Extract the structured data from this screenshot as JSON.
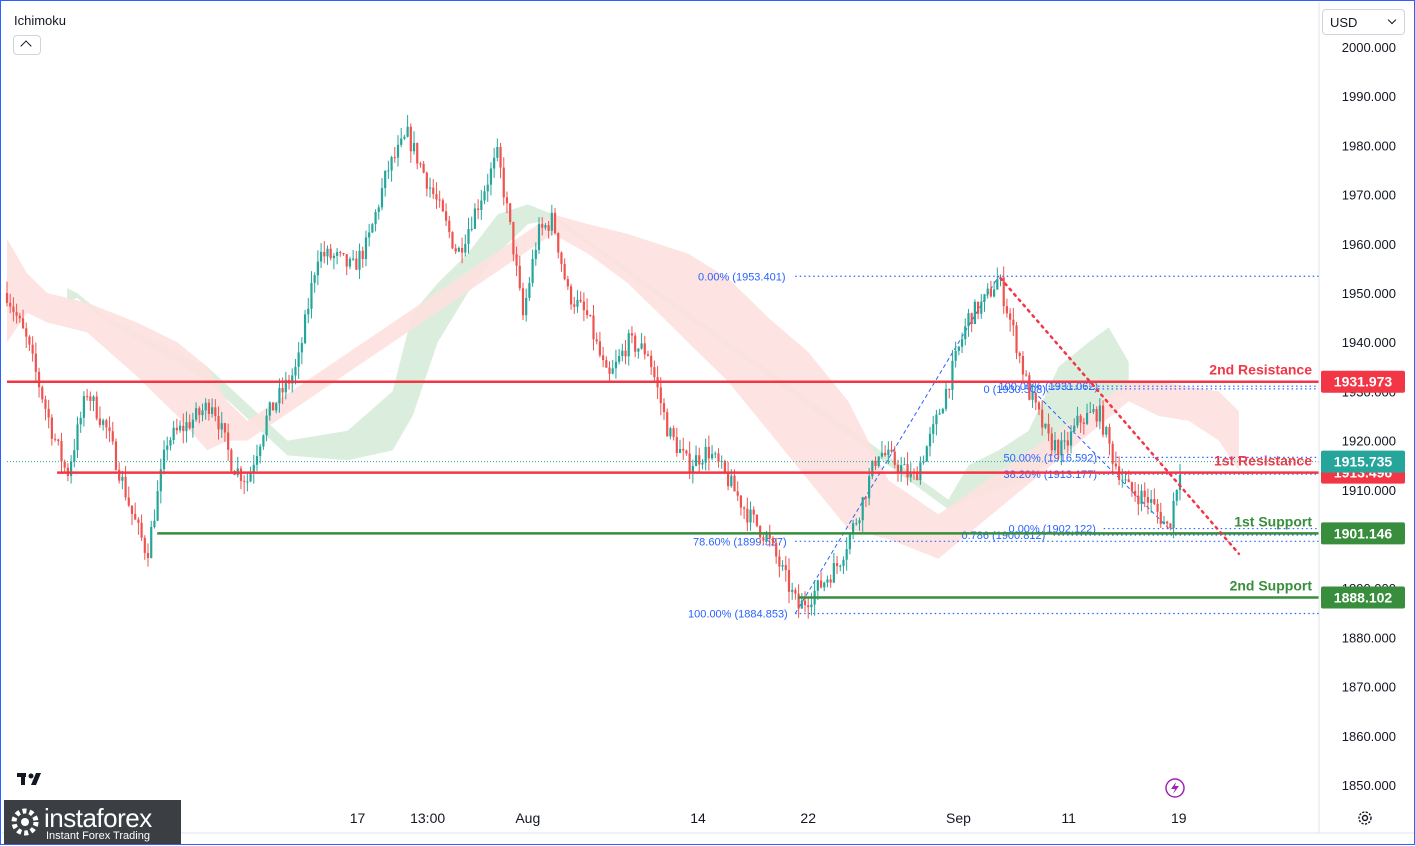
{
  "indicator": {
    "name": "Ichimoku"
  },
  "currency": {
    "selected": "USD"
  },
  "brand": {
    "name": "instaforex",
    "tagline": "Instant Forex Trading"
  },
  "icons": {
    "collapse": "chevron-up-icon",
    "currency_dropdown": "chevron-down-icon",
    "logo": "tradingview-logo-icon",
    "brand": "instaforex-logo-icon",
    "lightning": "lightning-icon",
    "settings": "gear-icon"
  },
  "colors": {
    "bull": "#26a69a",
    "bear": "#ef5350",
    "resistance": "#f23645",
    "support": "#388e3c",
    "fib": "#2962ff",
    "trend": "#f23645",
    "cloud_bull": "#d7ecd9",
    "cloud_bear": "#fde1df",
    "last_price": "#26a69a",
    "lightning": "#9c27b0"
  },
  "chart_data": {
    "type": "candlestick",
    "symbol_indicator": "Ichimoku",
    "y_axis": {
      "ylim": [
        1842,
        2002
      ],
      "ticks": [
        "1850.000",
        "1860.000",
        "1870.000",
        "1880.000",
        "1890.000",
        "1900.000",
        "1910.000",
        "1920.000",
        "1930.000",
        "1940.000",
        "1950.000",
        "1960.000",
        "1970.000",
        "1980.000",
        "1990.000",
        "2000.000"
      ],
      "tick_values": [
        1850,
        1860,
        1870,
        1880,
        1890,
        1900,
        1910,
        1920,
        1930,
        1940,
        1950,
        1960,
        1970,
        1980,
        1990,
        2000
      ]
    },
    "x_axis": {
      "labels": [
        {
          "t": 350,
          "label": "17"
        },
        {
          "t": 420,
          "label": "13:00"
        },
        {
          "t": 520,
          "label": "Aug"
        },
        {
          "t": 690,
          "label": "14"
        },
        {
          "t": 800,
          "label": "22"
        },
        {
          "t": 950,
          "label": "Sep"
        },
        {
          "t": 1060,
          "label": "11"
        },
        {
          "t": 1170,
          "label": "19"
        }
      ]
    },
    "price_path": [
      [
        0,
        1950
      ],
      [
        20,
        1940
      ],
      [
        45,
        1922
      ],
      [
        60,
        1913
      ],
      [
        80,
        1930
      ],
      [
        100,
        1922
      ],
      [
        125,
        1905
      ],
      [
        140,
        1897
      ],
      [
        160,
        1920
      ],
      [
        190,
        1925
      ],
      [
        205,
        1928
      ],
      [
        225,
        1915
      ],
      [
        240,
        1912
      ],
      [
        260,
        1925
      ],
      [
        290,
        1935
      ],
      [
        310,
        1958
      ],
      [
        330,
        1957
      ],
      [
        345,
        1955
      ],
      [
        360,
        1960
      ],
      [
        380,
        1975
      ],
      [
        400,
        1982
      ],
      [
        415,
        1975
      ],
      [
        430,
        1968
      ],
      [
        450,
        1958
      ],
      [
        470,
        1968
      ],
      [
        490,
        1978
      ],
      [
        505,
        1960
      ],
      [
        515,
        1945
      ],
      [
        530,
        1962
      ],
      [
        545,
        1965
      ],
      [
        560,
        1950
      ],
      [
        580,
        1945
      ],
      [
        600,
        1932
      ],
      [
        620,
        1940
      ],
      [
        640,
        1938
      ],
      [
        660,
        1922
      ],
      [
        680,
        1915
      ],
      [
        700,
        1918
      ],
      [
        720,
        1912
      ],
      [
        740,
        1905
      ],
      [
        760,
        1900
      ],
      [
        775,
        1893
      ],
      [
        790,
        1886
      ],
      [
        810,
        1890
      ],
      [
        830,
        1895
      ],
      [
        850,
        1905
      ],
      [
        870,
        1918
      ],
      [
        890,
        1915
      ],
      [
        905,
        1912
      ],
      [
        925,
        1922
      ],
      [
        945,
        1935
      ],
      [
        960,
        1945
      ],
      [
        975,
        1948
      ],
      [
        990,
        1953
      ],
      [
        1005,
        1942
      ],
      [
        1020,
        1930
      ],
      [
        1040,
        1920
      ],
      [
        1055,
        1918
      ],
      [
        1070,
        1924
      ],
      [
        1090,
        1926
      ],
      [
        1105,
        1916
      ],
      [
        1120,
        1910
      ],
      [
        1140,
        1908
      ],
      [
        1160,
        1902
      ],
      [
        1172,
        1915.7
      ]
    ],
    "ichimoku_cloud": {
      "bull": [
        [
          60,
          1951,
          1948
        ],
        [
          70,
          1950,
          1949
        ],
        [
          100,
          1945,
          1944
        ],
        [
          200,
          1935,
          1932
        ],
        [
          280,
          1920,
          1917
        ],
        [
          340,
          1922,
          1916
        ],
        [
          385,
          1930,
          1918
        ],
        [
          405,
          1946,
          1925
        ],
        [
          430,
          1952,
          1940
        ],
        [
          460,
          1958,
          1950
        ],
        [
          490,
          1966,
          1958
        ],
        [
          520,
          1968,
          1964
        ],
        [
          545,
          1966,
          1965
        ],
        [
          940,
          1908,
          1906
        ],
        [
          960,
          1915,
          1908
        ],
        [
          990,
          1918,
          1910
        ],
        [
          1020,
          1922,
          1912
        ],
        [
          1050,
          1935,
          1918
        ],
        [
          1080,
          1940,
          1925
        ],
        [
          1100,
          1943,
          1928
        ],
        [
          1120,
          1936,
          1930
        ]
      ],
      "bear": [
        [
          0,
          1961,
          1940
        ],
        [
          20,
          1954,
          1946
        ],
        [
          40,
          1950,
          1944
        ],
        [
          80,
          1948,
          1942
        ],
        [
          130,
          1944,
          1933
        ],
        [
          170,
          1940,
          1925
        ],
        [
          200,
          1935,
          1918
        ],
        [
          220,
          1928,
          1920
        ],
        [
          240,
          1924,
          1920
        ],
        [
          545,
          1966,
          1962
        ],
        [
          580,
          1964,
          1958
        ],
        [
          620,
          1962,
          1952
        ],
        [
          680,
          1958,
          1940
        ],
        [
          720,
          1953,
          1932
        ],
        [
          760,
          1945,
          1922
        ],
        [
          800,
          1938,
          1912
        ],
        [
          840,
          1928,
          1902
        ],
        [
          880,
          1912,
          1900
        ],
        [
          930,
          1905,
          1896
        ],
        [
          1120,
          1932,
          1928
        ],
        [
          1150,
          1932,
          1925
        ],
        [
          1180,
          1931,
          1924
        ],
        [
          1210,
          1930,
          1920
        ],
        [
          1230,
          1926,
          1914
        ]
      ]
    },
    "levels": [
      {
        "name": "2nd Resistance",
        "value": 1931.973,
        "label": "1931.973",
        "kind": "resistance",
        "t_start": 0
      },
      {
        "name": "1st Resistance",
        "value": 1913.496,
        "label": "1913.496",
        "kind": "resistance",
        "t_start": 50
      },
      {
        "name": "1st Support",
        "value": 1901.146,
        "label": "1901.146",
        "kind": "support",
        "t_start": 150
      },
      {
        "name": "2nd Support",
        "value": 1888.102,
        "label": "1888.102",
        "kind": "support",
        "t_start": 790
      }
    ],
    "last_price": {
      "value": 1915.735,
      "label": "1915.735"
    },
    "fib_retracements": [
      {
        "points": [
          [
            787,
            1884.853
          ],
          [
            990,
            1953.401
          ]
        ],
        "levels": [
          {
            "label": "0.00% (1953.401)",
            "value": 1953.401,
            "t_label": 690,
            "t_line": [
              787,
              1310
            ]
          },
          {
            "label": "78.60% (1899.527)",
            "value": 1899.527,
            "t_label": 685,
            "t_line": [
              787,
              1310
            ]
          },
          {
            "label": "100.00% (1884.853)",
            "value": 1884.853,
            "t_label": 680,
            "t_line": [
              787,
              1310
            ]
          }
        ]
      },
      {
        "points": [
          [
            1020,
            1931.062
          ],
          [
            1160,
            1902.122
          ]
        ],
        "levels": [
          {
            "label": "0 (1930.508)",
            "value": 1930.508,
            "t_label": 975,
            "t_line": [
              1040,
              1310
            ]
          },
          {
            "label": "100.00% (1931.062)",
            "value": 1931.062,
            "t_label": 990,
            "t_line": [
              1040,
              1310
            ]
          },
          {
            "label": "50.00% (1916.592)",
            "value": 1916.592,
            "t_label": 995,
            "t_line": [
              1090,
              1310
            ]
          },
          {
            "label": "38.20% (1913.177)",
            "value": 1913.177,
            "t_label": 995,
            "t_line": [
              1090,
              1310
            ]
          },
          {
            "label": "0.786 (1900.812)",
            "value": 1900.812,
            "t_label": 953,
            "t_line": [
              1045,
              1310
            ]
          },
          {
            "label": "0.00% (1902.122)",
            "value": 1902.122,
            "t_label": 1000,
            "t_line": [
              1095,
              1310
            ]
          }
        ]
      }
    ],
    "trendline": {
      "from": [
        992,
        1953
      ],
      "to": [
        1230,
        1897
      ]
    }
  }
}
